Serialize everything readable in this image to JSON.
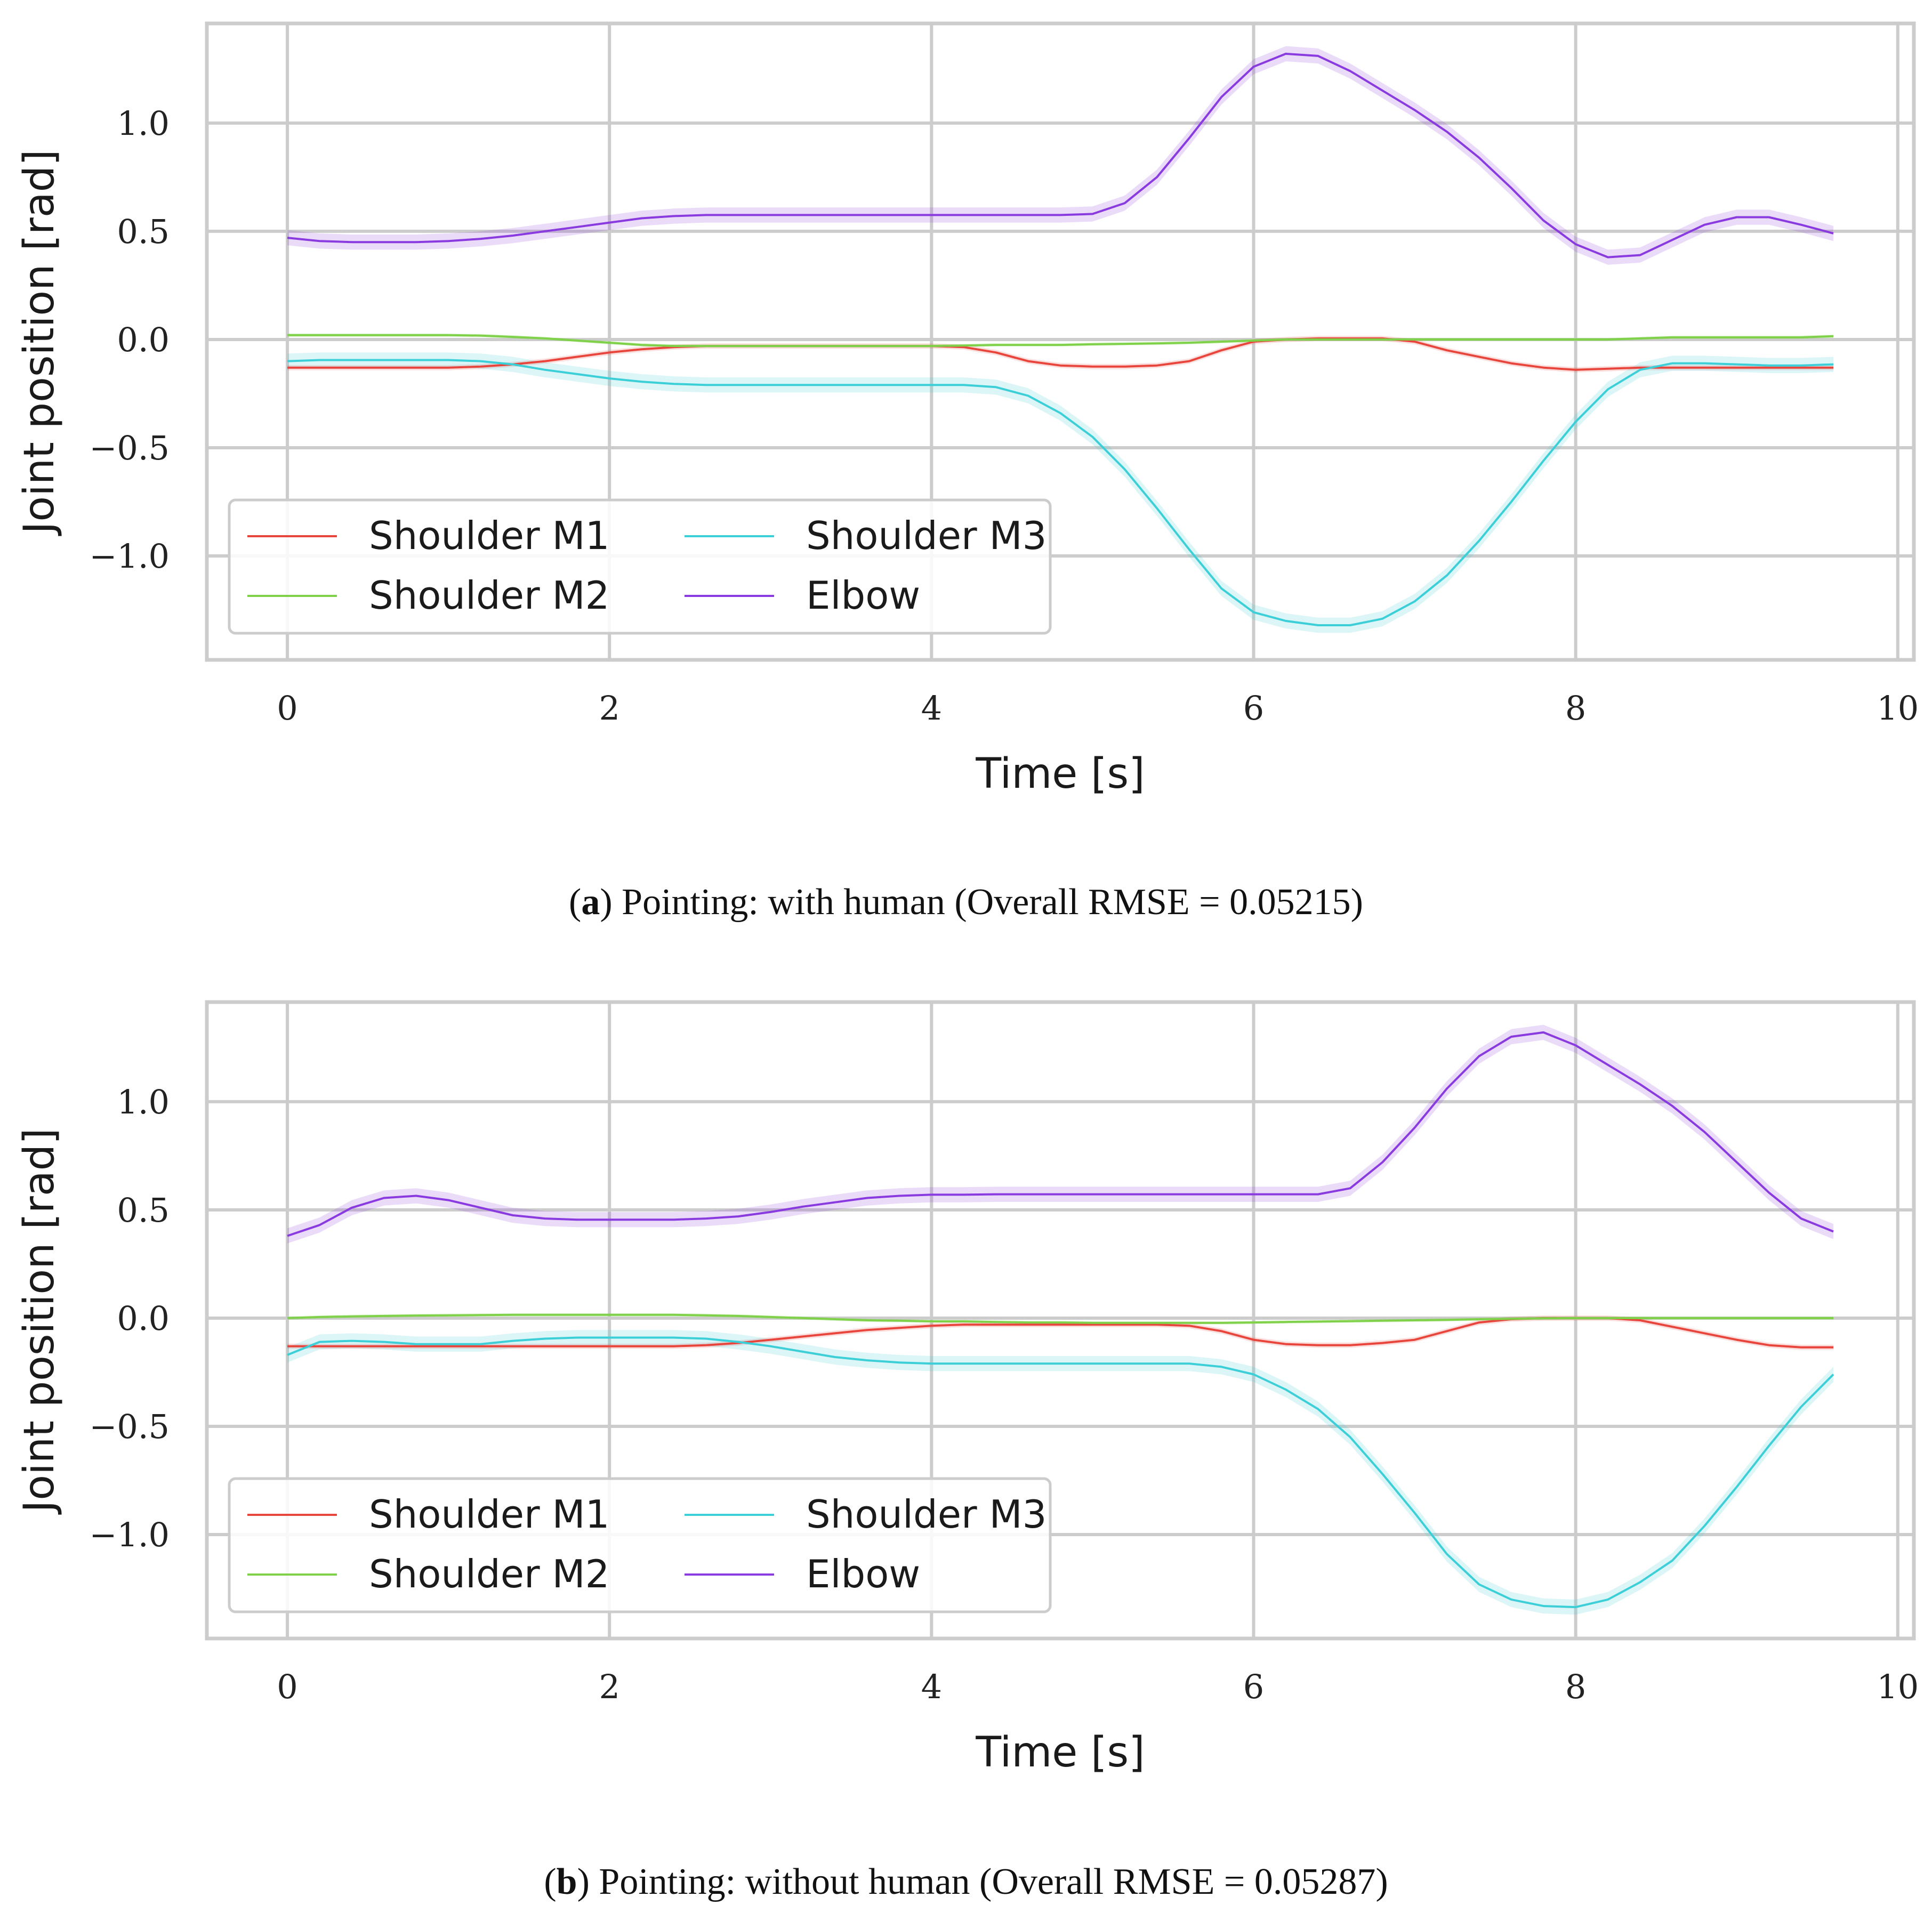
{
  "figure": {
    "caption_a": {
      "label": "a",
      "open": "(",
      "text": ") Pointing: with human (Overall RMSE = 0.05215)"
    },
    "caption_b": {
      "label": "b",
      "open": "(",
      "text": ") Pointing: without human (Overall RMSE = 0.05287)"
    }
  },
  "colors": {
    "Shoulder M1": "#e8453c",
    "Shoulder M2": "#7fd14a",
    "Shoulder M3": "#3ccfd8",
    "Elbow": "#8a3be0"
  },
  "chart_data": [
    {
      "type": "line",
      "title": "",
      "xlabel": "Time [s]",
      "ylabel": "Joint position [rad]",
      "xlim": [
        -0.5,
        10.1
      ],
      "ylim": [
        -1.48,
        1.46
      ],
      "xticks": [
        0,
        2,
        4,
        6,
        8,
        10
      ],
      "xtick_labels": [
        "0",
        "2",
        "4",
        "6",
        "8",
        "10"
      ],
      "yticks": [
        1.0,
        0.5,
        0.0,
        -0.5,
        -1.0
      ],
      "ytick_labels": [
        "1.0",
        "0.5",
        "0.0",
        "−0.5",
        "−1.0"
      ],
      "grid": true,
      "legend": {
        "location": "lower-left",
        "columns": 2
      },
      "x": [
        0,
        0.2,
        0.4,
        0.6,
        0.8,
        1.0,
        1.2,
        1.4,
        1.6,
        1.8,
        2.0,
        2.2,
        2.4,
        2.6,
        2.8,
        3.0,
        3.2,
        3.4,
        3.6,
        3.8,
        4.0,
        4.2,
        4.4,
        4.6,
        4.8,
        5.0,
        5.2,
        5.4,
        5.6,
        5.8,
        6.0,
        6.2,
        6.4,
        6.6,
        6.8,
        7.0,
        7.2,
        7.4,
        7.6,
        7.8,
        8.0,
        8.2,
        8.4,
        8.6,
        8.8,
        9.0,
        9.2,
        9.4,
        9.6
      ],
      "series": [
        {
          "name": "Shoulder M1",
          "band": 0.012,
          "values": [
            -0.13,
            -0.13,
            -0.13,
            -0.13,
            -0.13,
            -0.13,
            -0.125,
            -0.115,
            -0.1,
            -0.08,
            -0.06,
            -0.045,
            -0.035,
            -0.03,
            -0.03,
            -0.03,
            -0.03,
            -0.03,
            -0.03,
            -0.03,
            -0.03,
            -0.035,
            -0.06,
            -0.1,
            -0.12,
            -0.125,
            -0.125,
            -0.12,
            -0.1,
            -0.05,
            -0.01,
            0.0,
            0.005,
            0.005,
            0.005,
            -0.01,
            -0.05,
            -0.08,
            -0.11,
            -0.13,
            -0.14,
            -0.135,
            -0.13,
            -0.13,
            -0.13,
            -0.13,
            -0.13,
            -0.13,
            -0.13
          ]
        },
        {
          "name": "Shoulder M2",
          "band": 0.008,
          "values": [
            0.02,
            0.02,
            0.02,
            0.02,
            0.02,
            0.02,
            0.018,
            0.012,
            0.005,
            -0.005,
            -0.015,
            -0.025,
            -0.03,
            -0.03,
            -0.03,
            -0.03,
            -0.03,
            -0.03,
            -0.03,
            -0.03,
            -0.03,
            -0.028,
            -0.025,
            -0.025,
            -0.025,
            -0.022,
            -0.02,
            -0.018,
            -0.015,
            -0.01,
            -0.005,
            0.0,
            0.0,
            0.0,
            0.0,
            0.0,
            0.0,
            0.0,
            0.0,
            0.0,
            0.0,
            0.0,
            0.005,
            0.01,
            0.01,
            0.01,
            0.01,
            0.01,
            0.015
          ]
        },
        {
          "name": "Shoulder M3",
          "band": 0.035,
          "values": [
            -0.1,
            -0.095,
            -0.095,
            -0.095,
            -0.095,
            -0.095,
            -0.1,
            -0.115,
            -0.14,
            -0.16,
            -0.18,
            -0.195,
            -0.205,
            -0.21,
            -0.21,
            -0.21,
            -0.21,
            -0.21,
            -0.21,
            -0.21,
            -0.21,
            -0.21,
            -0.22,
            -0.26,
            -0.34,
            -0.45,
            -0.6,
            -0.78,
            -0.97,
            -1.15,
            -1.26,
            -1.3,
            -1.32,
            -1.32,
            -1.29,
            -1.21,
            -1.09,
            -0.93,
            -0.75,
            -0.56,
            -0.38,
            -0.23,
            -0.14,
            -0.11,
            -0.11,
            -0.115,
            -0.12,
            -0.12,
            -0.115
          ]
        },
        {
          "name": "Elbow",
          "band": 0.035,
          "values": [
            0.47,
            0.455,
            0.45,
            0.45,
            0.45,
            0.455,
            0.465,
            0.48,
            0.5,
            0.52,
            0.54,
            0.56,
            0.57,
            0.575,
            0.575,
            0.575,
            0.575,
            0.575,
            0.575,
            0.575,
            0.575,
            0.575,
            0.575,
            0.575,
            0.575,
            0.58,
            0.63,
            0.75,
            0.93,
            1.12,
            1.26,
            1.32,
            1.31,
            1.24,
            1.15,
            1.06,
            0.96,
            0.84,
            0.7,
            0.55,
            0.44,
            0.38,
            0.39,
            0.46,
            0.53,
            0.565,
            0.565,
            0.53,
            0.49
          ]
        }
      ]
    },
    {
      "type": "line",
      "title": "",
      "xlabel": "Time [s]",
      "ylabel": "Joint position [rad]",
      "xlim": [
        -0.5,
        10.1
      ],
      "ylim": [
        -1.48,
        1.46
      ],
      "xticks": [
        0,
        2,
        4,
        6,
        8,
        10
      ],
      "xtick_labels": [
        "0",
        "2",
        "4",
        "6",
        "8",
        "10"
      ],
      "yticks": [
        1.0,
        0.5,
        0.0,
        -0.5,
        -1.0
      ],
      "ytick_labels": [
        "1.0",
        "0.5",
        "0.0",
        "−0.5",
        "−1.0"
      ],
      "grid": true,
      "legend": {
        "location": "lower-left",
        "columns": 2
      },
      "x": [
        0,
        0.2,
        0.4,
        0.6,
        0.8,
        1.0,
        1.2,
        1.4,
        1.6,
        1.8,
        2.0,
        2.2,
        2.4,
        2.6,
        2.8,
        3.0,
        3.2,
        3.4,
        3.6,
        3.8,
        4.0,
        4.2,
        4.4,
        4.6,
        4.8,
        5.0,
        5.2,
        5.4,
        5.6,
        5.8,
        6.0,
        6.2,
        6.4,
        6.6,
        6.8,
        7.0,
        7.2,
        7.4,
        7.6,
        7.8,
        8.0,
        8.2,
        8.4,
        8.6,
        8.8,
        9.0,
        9.2,
        9.4,
        9.6
      ],
      "series": [
        {
          "name": "Shoulder M1",
          "band": 0.012,
          "values": [
            -0.13,
            -0.13,
            -0.13,
            -0.13,
            -0.13,
            -0.13,
            -0.13,
            -0.13,
            -0.13,
            -0.13,
            -0.13,
            -0.13,
            -0.13,
            -0.125,
            -0.115,
            -0.1,
            -0.085,
            -0.07,
            -0.055,
            -0.045,
            -0.035,
            -0.03,
            -0.03,
            -0.03,
            -0.03,
            -0.03,
            -0.03,
            -0.03,
            -0.035,
            -0.06,
            -0.1,
            -0.12,
            -0.125,
            -0.125,
            -0.115,
            -0.1,
            -0.06,
            -0.02,
            -0.005,
            0.0,
            0.0,
            0.0,
            -0.01,
            -0.04,
            -0.07,
            -0.1,
            -0.125,
            -0.135,
            -0.135
          ]
        },
        {
          "name": "Shoulder M2",
          "band": 0.008,
          "values": [
            0.0,
            0.005,
            0.008,
            0.01,
            0.012,
            0.013,
            0.014,
            0.015,
            0.015,
            0.015,
            0.015,
            0.015,
            0.015,
            0.013,
            0.01,
            0.005,
            0.0,
            -0.005,
            -0.01,
            -0.012,
            -0.015,
            -0.015,
            -0.018,
            -0.02,
            -0.02,
            -0.022,
            -0.022,
            -0.022,
            -0.022,
            -0.022,
            -0.02,
            -0.018,
            -0.016,
            -0.014,
            -0.012,
            -0.01,
            -0.008,
            -0.005,
            -0.003,
            -0.001,
            0.0,
            0.0,
            0.0,
            0.0,
            0.0,
            0.0,
            0.0,
            0.0,
            0.0
          ]
        },
        {
          "name": "Shoulder M3",
          "band": 0.035,
          "values": [
            -0.17,
            -0.11,
            -0.105,
            -0.11,
            -0.12,
            -0.12,
            -0.12,
            -0.105,
            -0.095,
            -0.09,
            -0.09,
            -0.09,
            -0.09,
            -0.095,
            -0.11,
            -0.13,
            -0.155,
            -0.18,
            -0.195,
            -0.205,
            -0.21,
            -0.21,
            -0.21,
            -0.21,
            -0.21,
            -0.21,
            -0.21,
            -0.21,
            -0.21,
            -0.225,
            -0.26,
            -0.33,
            -0.42,
            -0.55,
            -0.72,
            -0.9,
            -1.09,
            -1.23,
            -1.3,
            -1.33,
            -1.335,
            -1.3,
            -1.22,
            -1.12,
            -0.96,
            -0.78,
            -0.59,
            -0.41,
            -0.26
          ]
        },
        {
          "name": "Elbow",
          "band": 0.035,
          "values": [
            0.38,
            0.43,
            0.51,
            0.555,
            0.565,
            0.545,
            0.51,
            0.475,
            0.46,
            0.455,
            0.455,
            0.455,
            0.455,
            0.46,
            0.47,
            0.49,
            0.515,
            0.535,
            0.555,
            0.565,
            0.57,
            0.57,
            0.572,
            0.572,
            0.572,
            0.572,
            0.572,
            0.572,
            0.572,
            0.572,
            0.572,
            0.572,
            0.572,
            0.6,
            0.72,
            0.88,
            1.06,
            1.21,
            1.3,
            1.32,
            1.26,
            1.17,
            1.08,
            0.98,
            0.86,
            0.72,
            0.58,
            0.46,
            0.4
          ]
        }
      ]
    }
  ]
}
